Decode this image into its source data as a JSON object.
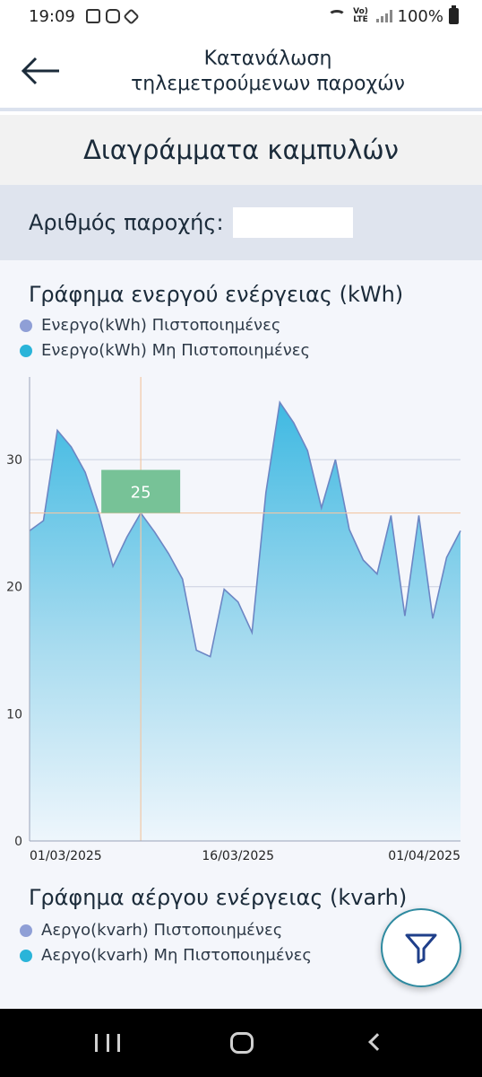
{
  "status_bar": {
    "time": "19:09",
    "lte": "Vo) LTE",
    "battery": "100%"
  },
  "header": {
    "title_line1": "Κατανάλωση",
    "title_line2": "τηλεμετρούμενων παροχών"
  },
  "section_title": "Διαγράμματα καμπυλών",
  "supply": {
    "label": "Αριθμός παροχής:",
    "value": ""
  },
  "active_chart": {
    "title": "Γράφημα ενεργού ενέργειας (kWh)",
    "legend": [
      {
        "label": "Ενεργο(kWh) Πιστοποιημένες",
        "color": "#8f9fd6"
      },
      {
        "label": "Ενεργο(kWh) Μη Πιστοποιημένες",
        "color": "#2ab4d9"
      }
    ]
  },
  "reactive_chart": {
    "title": "Γράφημα αέργου ενέργειας (kvarh)",
    "legend": [
      {
        "label": "Αεργο(kvarh) Πιστοποιημένες",
        "color": "#8f9fd6"
      },
      {
        "label": "Αεργο(kvarh) Μη Πιστοποιημένες",
        "color": "#2ab4d9"
      }
    ]
  },
  "chart_data": {
    "type": "area",
    "title": "Γράφημα ενεργού ενέργειας (kWh)",
    "ylim": [
      0,
      36.5
    ],
    "yticks": [
      0,
      10,
      20,
      30
    ],
    "x_tick_labels": [
      {
        "label": "01/03/2025",
        "index": 0
      },
      {
        "label": "16/03/2025",
        "index": 15
      },
      {
        "label": "01/04/2025",
        "index": 31
      }
    ],
    "grid": true,
    "series": [
      {
        "name": "Ενεργο(kWh) Μη Πιστοποιημένες",
        "values": [
          24.4,
          25.2,
          32.3,
          31.0,
          29.0,
          25.7,
          21.6,
          23.9,
          25.8,
          24.3,
          22.6,
          20.6,
          15.0,
          14.5,
          19.8,
          18.8,
          16.4,
          27.4,
          34.5,
          32.9,
          30.7,
          26.2,
          30.0,
          24.5,
          22.1,
          21.0,
          25.6,
          17.7,
          25.6,
          17.5,
          22.3,
          24.4
        ]
      }
    ],
    "highlight": {
      "index": 8,
      "label": "25"
    }
  }
}
